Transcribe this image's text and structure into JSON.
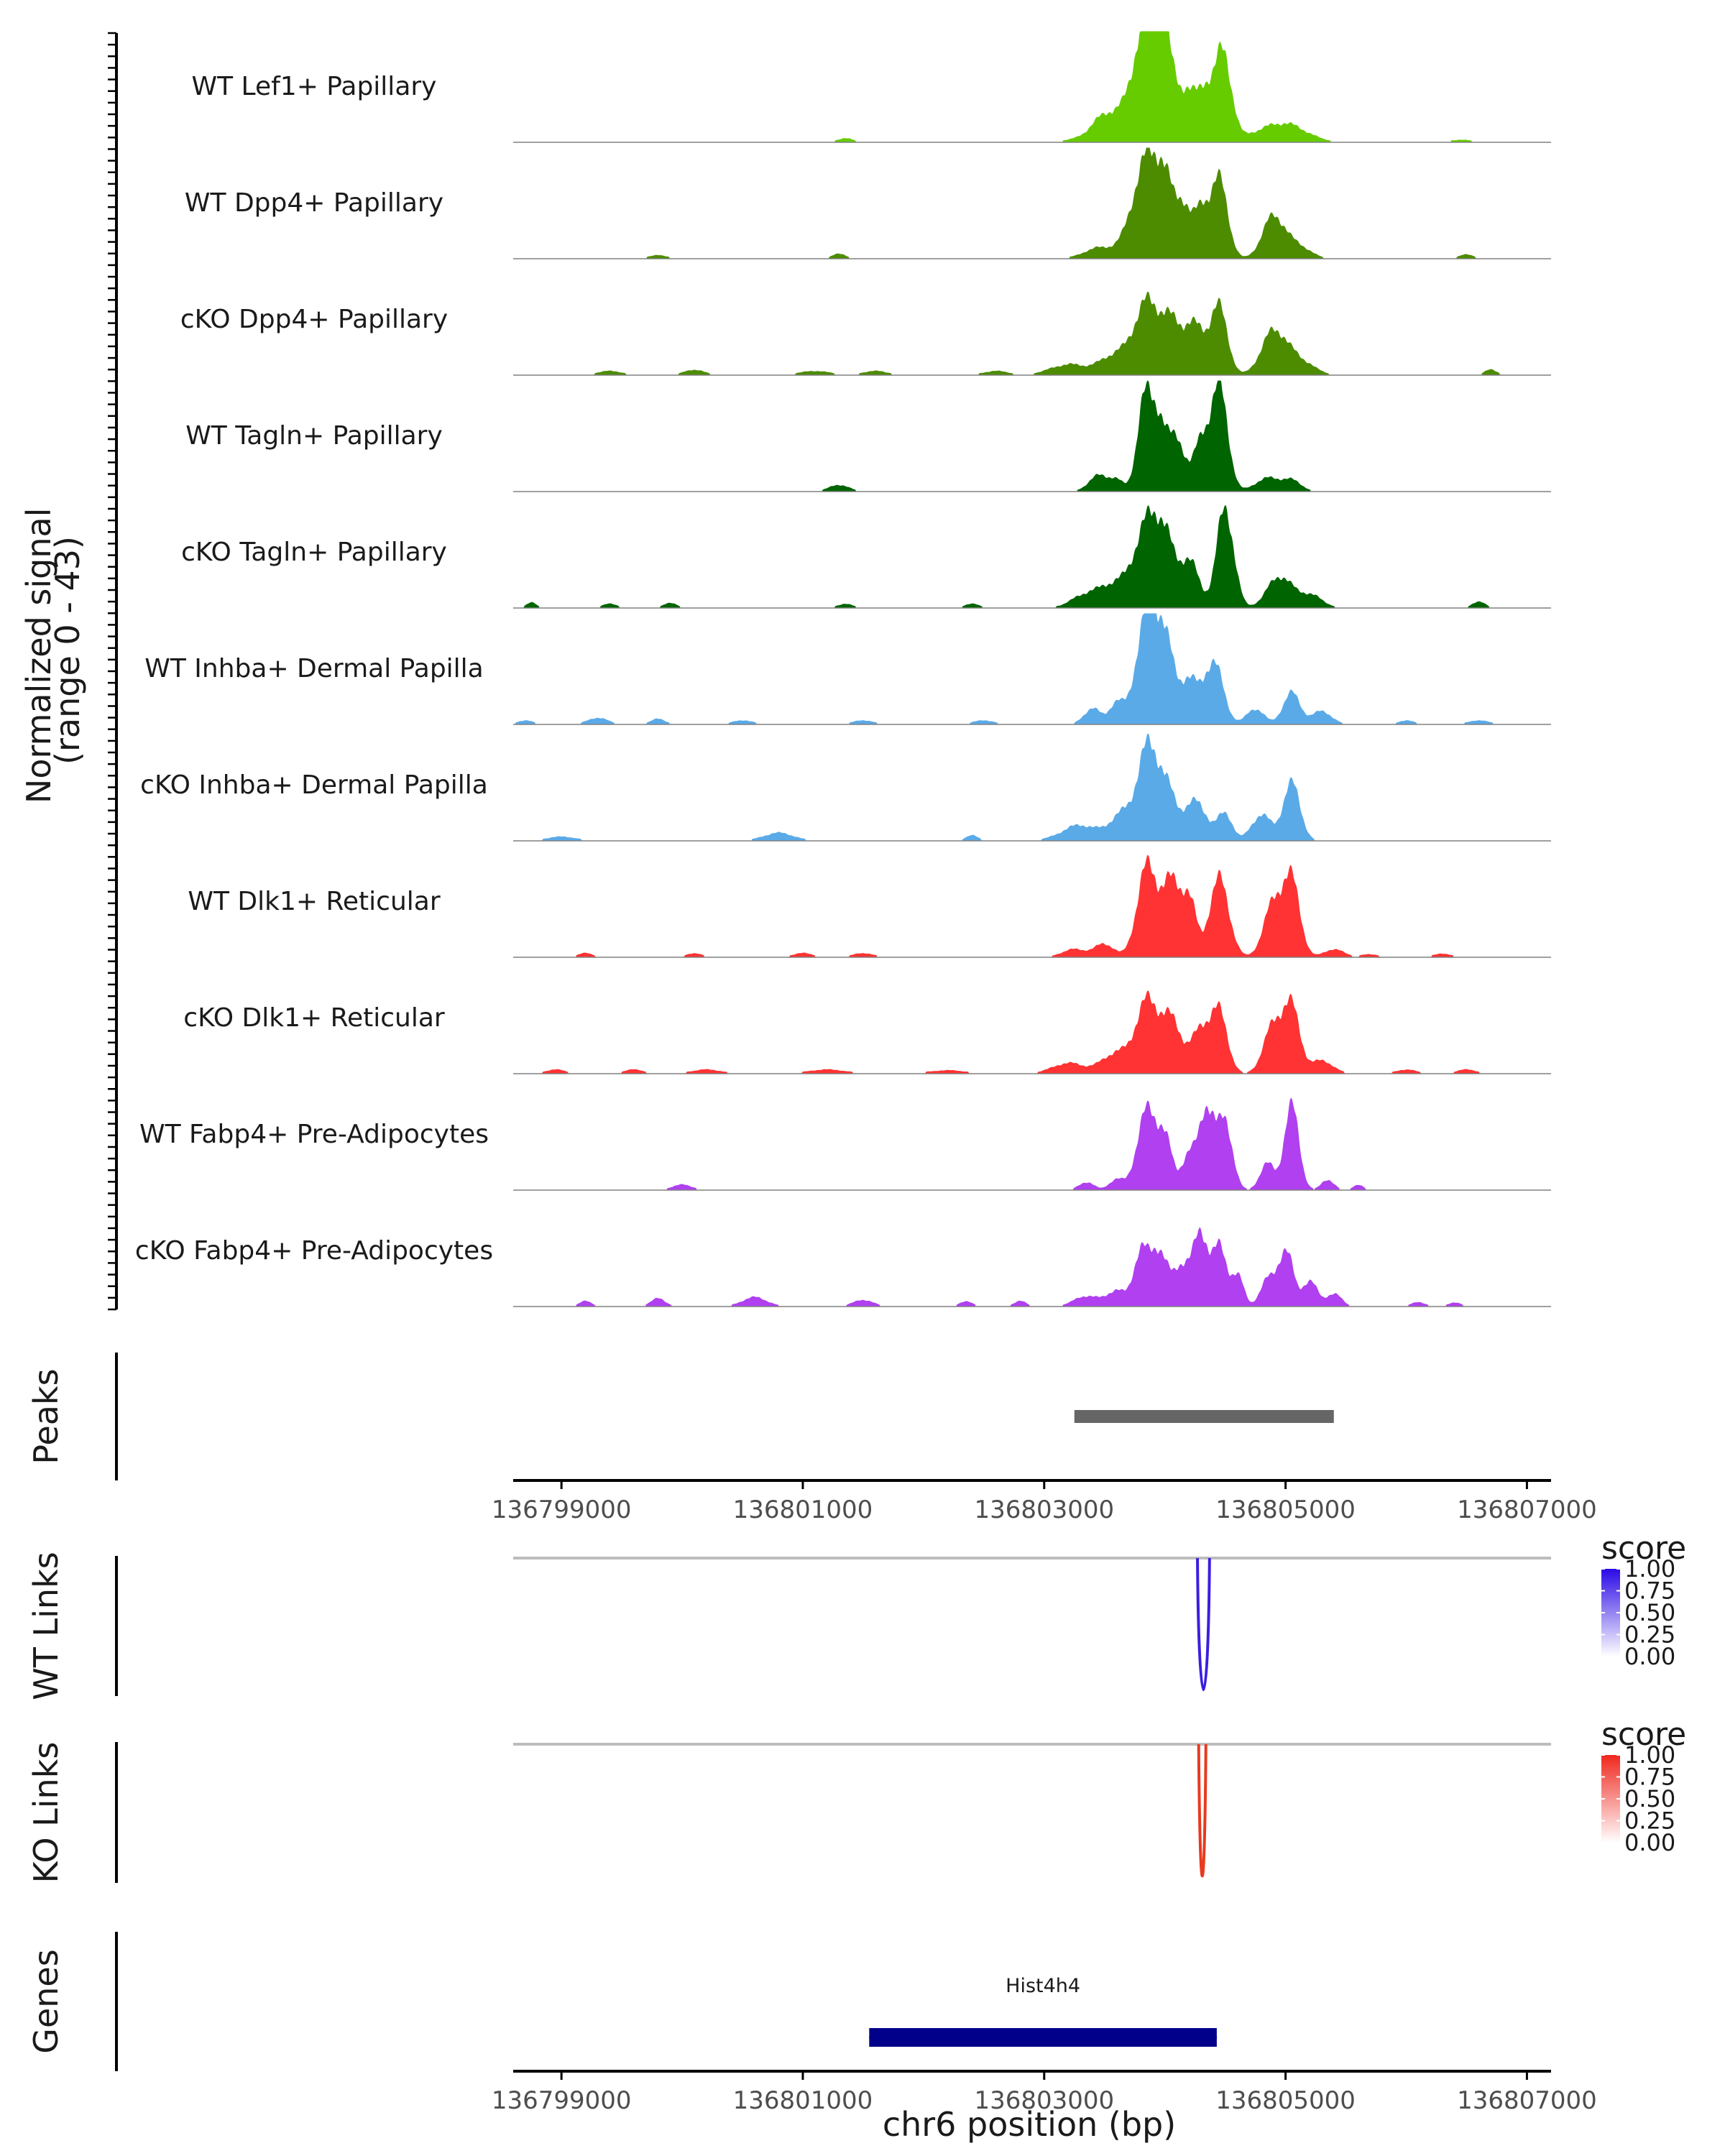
{
  "chart_data": {
    "type": "genome-coverage-plot",
    "region": {
      "chrom": "chr6",
      "start": 136798600,
      "end": 136807200
    },
    "xlabel": "chr6 position (bp)",
    "x_ticks": [
      136799000,
      136801000,
      136803000,
      136805000,
      136807000
    ],
    "x_tick_labels": [
      "136799000",
      "136801000",
      "136803000",
      "136805000",
      "136807000"
    ],
    "coverage": {
      "ylabel_line1": "Normalized signal",
      "ylabel_line2": "(range 0 - 43)",
      "yrange": [
        0,
        43
      ],
      "tracks": [
        {
          "label": "WT Lef1+ Papillary",
          "color": "#66CC00",
          "peaks": [
            [
              136803500,
              5,
              100
            ],
            [
              136803750,
              10,
              250
            ],
            [
              136803850,
              38,
              100
            ],
            [
              136803950,
              22,
              60
            ],
            [
              136804050,
              18,
              80
            ],
            [
              136804200,
              14,
              60
            ],
            [
              136804330,
              18,
              60
            ],
            [
              136804480,
              34,
              70
            ],
            [
              136804900,
              5,
              200
            ],
            [
              136805050,
              3,
              150
            ],
            [
              136803920,
              26,
              40
            ],
            [
              136801350,
              1.5,
              60
            ],
            [
              136806450,
              0.8,
              120
            ]
          ]
        },
        {
          "label": "WT Dpp4+ Papillary",
          "color": "#4D8C00",
          "peaks": [
            [
              136803450,
              4,
              120
            ],
            [
              136803700,
              5,
              100
            ],
            [
              136803850,
              36,
              100
            ],
            [
              136804000,
              24,
              70
            ],
            [
              136804150,
              20,
              60
            ],
            [
              136804300,
              18,
              60
            ],
            [
              136804450,
              30,
              70
            ],
            [
              136804900,
              16,
              90
            ],
            [
              136805100,
              5,
              100
            ],
            [
              136801300,
              2,
              50
            ],
            [
              136806500,
              1.5,
              60
            ],
            [
              136799800,
              1.2,
              80
            ]
          ]
        },
        {
          "label": "cKO Dpp4+ Papillary",
          "color": "#4D8C00",
          "peaks": [
            [
              136803200,
              4,
              150
            ],
            [
              136803600,
              8,
              130
            ],
            [
              136803850,
              26,
              100
            ],
            [
              136804050,
              18,
              90
            ],
            [
              136804250,
              18,
              90
            ],
            [
              136804450,
              25,
              70
            ],
            [
              136804900,
              16,
              100
            ],
            [
              136805100,
              6,
              120
            ],
            [
              136799400,
              1.5,
              100
            ],
            [
              136800100,
              2,
              80
            ],
            [
              136801100,
              1.5,
              120
            ],
            [
              136801600,
              1.5,
              100
            ],
            [
              136802600,
              1.5,
              100
            ],
            [
              136806700,
              2,
              50
            ]
          ]
        },
        {
          "label": "WT Tagln+ Papillary",
          "color": "#006400",
          "peaks": [
            [
              136803450,
              6,
              80
            ],
            [
              136803600,
              4,
              60
            ],
            [
              136803830,
              34,
              60
            ],
            [
              136803950,
              26,
              60
            ],
            [
              136804100,
              20,
              70
            ],
            [
              136804300,
              18,
              60
            ],
            [
              136804450,
              40,
              70
            ],
            [
              136804850,
              5,
              100
            ],
            [
              136805050,
              4,
              80
            ],
            [
              136801300,
              2.5,
              80
            ]
          ]
        },
        {
          "label": "cKO Tagln+ Papillary",
          "color": "#006400",
          "peaks": [
            [
              136803350,
              5,
              120
            ],
            [
              136803600,
              9,
              120
            ],
            [
              136803850,
              30,
              100
            ],
            [
              136804000,
              22,
              80
            ],
            [
              136804200,
              18,
              80
            ],
            [
              136804500,
              38,
              70
            ],
            [
              136804950,
              12,
              100
            ],
            [
              136805200,
              5,
              100
            ],
            [
              136798750,
              2,
              40
            ],
            [
              136799400,
              1.5,
              60
            ],
            [
              136799900,
              2,
              50
            ],
            [
              136801350,
              1.5,
              60
            ],
            [
              136802400,
              1.5,
              60
            ],
            [
              136806600,
              2.5,
              50
            ]
          ]
        },
        {
          "label": "WT Inhba+ Dermal Papilla",
          "color": "#5AAAE8",
          "peaks": [
            [
              136803400,
              6,
              70
            ],
            [
              136803600,
              8,
              60
            ],
            [
              136803850,
              40,
              90
            ],
            [
              136804000,
              28,
              80
            ],
            [
              136804200,
              16,
              70
            ],
            [
              136804400,
              24,
              80
            ],
            [
              136804750,
              6,
              70
            ],
            [
              136805050,
              12,
              70
            ],
            [
              136805300,
              5,
              80
            ],
            [
              136798700,
              1.5,
              60
            ],
            [
              136799300,
              2.5,
              80
            ],
            [
              136799800,
              2,
              60
            ],
            [
              136800500,
              1.5,
              80
            ],
            [
              136801500,
              1.5,
              80
            ],
            [
              136802500,
              1.5,
              80
            ],
            [
              136806000,
              1.5,
              60
            ],
            [
              136806600,
              1.5,
              80
            ]
          ]
        },
        {
          "label": "cKO Inhba+ Dermal Papilla",
          "color": "#5AAAE8",
          "peaks": [
            [
              136803300,
              6,
              150
            ],
            [
              136803650,
              10,
              100
            ],
            [
              136803850,
              32,
              80
            ],
            [
              136804000,
              20,
              80
            ],
            [
              136804250,
              15,
              100
            ],
            [
              136804500,
              10,
              60
            ],
            [
              136804800,
              10,
              80
            ],
            [
              136805050,
              22,
              70
            ],
            [
              136799000,
              1.5,
              120
            ],
            [
              136800800,
              3,
              120
            ],
            [
              136802400,
              2,
              50
            ]
          ]
        },
        {
          "label": "WT Dlk1+ Reticular",
          "color": "#FF3333",
          "peaks": [
            [
              136803250,
              3,
              100
            ],
            [
              136803500,
              5,
              80
            ],
            [
              136803850,
              34,
              80
            ],
            [
              136804050,
              28,
              80
            ],
            [
              136804200,
              20,
              60
            ],
            [
              136804450,
              30,
              80
            ],
            [
              136804900,
              20,
              80
            ],
            [
              136805050,
              28,
              70
            ],
            [
              136805400,
              3,
              80
            ],
            [
              136799200,
              1.5,
              60
            ],
            [
              136800100,
              1.5,
              60
            ],
            [
              136801000,
              1.5,
              80
            ],
            [
              136801500,
              1.5,
              80
            ],
            [
              136805700,
              1,
              80
            ],
            [
              136806300,
              1.2,
              80
            ]
          ]
        },
        {
          "label": "cKO Dlk1+ Reticular",
          "color": "#FF3333",
          "peaks": [
            [
              136803200,
              4,
              130
            ],
            [
              136803600,
              8,
              120
            ],
            [
              136803850,
              26,
              90
            ],
            [
              136804050,
              20,
              90
            ],
            [
              136804300,
              16,
              80
            ],
            [
              136804450,
              22,
              70
            ],
            [
              136804900,
              18,
              80
            ],
            [
              136805050,
              24,
              70
            ],
            [
              136805300,
              5,
              90
            ],
            [
              136798950,
              1.5,
              80
            ],
            [
              136799600,
              1.5,
              80
            ],
            [
              136800200,
              1.5,
              120
            ],
            [
              136801200,
              1.5,
              150
            ],
            [
              136802200,
              1.2,
              150
            ],
            [
              136806000,
              1.5,
              80
            ],
            [
              136806500,
              1.5,
              80
            ]
          ]
        },
        {
          "label": "WT Fabp4+ Pre-Adipocytes",
          "color": "#B040F0",
          "peaks": [
            [
              136803350,
              3,
              60
            ],
            [
              136803600,
              4,
              60
            ],
            [
              136803850,
              30,
              80
            ],
            [
              136804000,
              18,
              60
            ],
            [
              136804200,
              14,
              60
            ],
            [
              136804350,
              32,
              60
            ],
            [
              136804500,
              26,
              60
            ],
            [
              136804850,
              10,
              60
            ],
            [
              136805050,
              32,
              60
            ],
            [
              136805350,
              4,
              50
            ],
            [
              136805600,
              2,
              40
            ],
            [
              136800000,
              2,
              80
            ]
          ]
        },
        {
          "label": "cKO Fabp4+ Pre-Adipocytes",
          "color": "#B040F0",
          "peaks": [
            [
              136803350,
              4,
              100
            ],
            [
              136803600,
              6,
              80
            ],
            [
              136803800,
              20,
              60
            ],
            [
              136803950,
              22,
              70
            ],
            [
              136804150,
              16,
              70
            ],
            [
              136804300,
              26,
              60
            ],
            [
              136804450,
              22,
              60
            ],
            [
              136804600,
              12,
              50
            ],
            [
              136804850,
              10,
              60
            ],
            [
              136805000,
              22,
              60
            ],
            [
              136805200,
              10,
              60
            ],
            [
              136805400,
              5,
              60
            ],
            [
              136799200,
              2,
              50
            ],
            [
              136799800,
              3,
              60
            ],
            [
              136800600,
              3.5,
              100
            ],
            [
              136801500,
              2.5,
              80
            ],
            [
              136802350,
              2,
              50
            ],
            [
              136802800,
              2,
              50
            ],
            [
              136806100,
              1.5,
              60
            ],
            [
              136806400,
              1.5,
              50
            ]
          ]
        }
      ]
    },
    "peaks": {
      "label": "Peaks",
      "intervals": [
        [
          136803250,
          136805400
        ]
      ],
      "color": "#666666"
    },
    "links": [
      {
        "label": "WT Links",
        "loop_start": 136804270,
        "loop_end": 136804370,
        "score": 1.0,
        "color": "#3A1FE0",
        "legend": {
          "title": "score",
          "ticks": [
            "1.00",
            "0.75",
            "0.50",
            "0.25",
            "0.00"
          ],
          "color_high": "#2A0AE6",
          "color_low": "#FFFFFF"
        }
      },
      {
        "label": "KO Links",
        "loop_start": 136804280,
        "loop_end": 136804340,
        "score": 1.0,
        "color": "#E83A1F",
        "legend": {
          "title": "score",
          "ticks": [
            "1.00",
            "0.75",
            "0.50",
            "0.25",
            "0.00"
          ],
          "color_high": "#F0281E",
          "color_low": "#FFFFFF"
        }
      }
    ],
    "genes": {
      "label": "Genes",
      "items": [
        {
          "name": "Hist4h4",
          "start": 136801550,
          "end": 136804430,
          "color": "#00008B"
        }
      ]
    }
  }
}
